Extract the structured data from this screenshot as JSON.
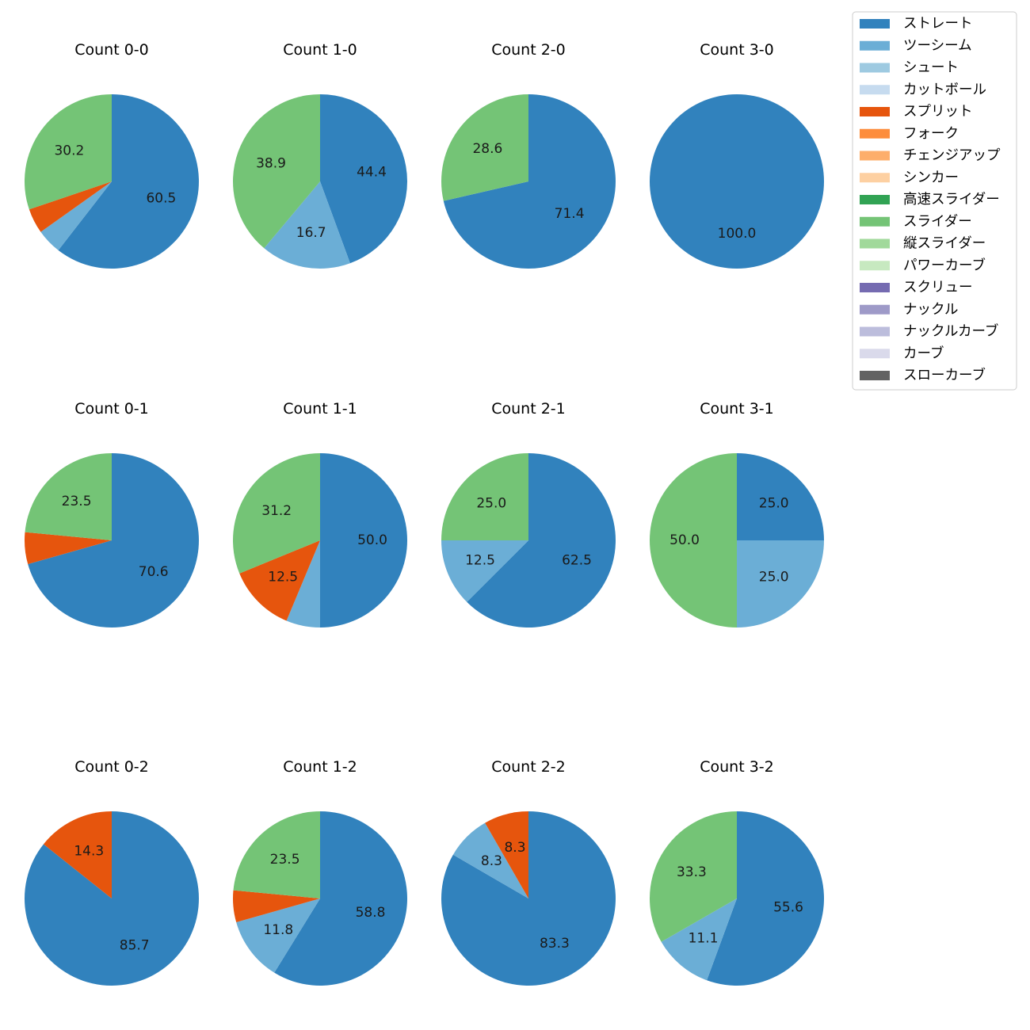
{
  "legend": {
    "entries": [
      {
        "name": "ストレート",
        "color": "#3182bd"
      },
      {
        "name": "ツーシーム",
        "color": "#6baed6"
      },
      {
        "name": "シュート",
        "color": "#9ecae1"
      },
      {
        "name": "カットボール",
        "color": "#c6dbef"
      },
      {
        "name": "スプリット",
        "color": "#e6550d"
      },
      {
        "name": "フォーク",
        "color": "#fd8d3c"
      },
      {
        "name": "チェンジアップ",
        "color": "#fdae6b"
      },
      {
        "name": "シンカー",
        "color": "#fdd0a2"
      },
      {
        "name": "高速スライダー",
        "color": "#31a354"
      },
      {
        "name": "スライダー",
        "color": "#74c476"
      },
      {
        "name": "縦スライダー",
        "color": "#a1d99b"
      },
      {
        "name": "パワーカーブ",
        "color": "#c7e9c0"
      },
      {
        "name": "スクリュー",
        "color": "#756bb1"
      },
      {
        "name": "ナックル",
        "color": "#9e9ac8"
      },
      {
        "name": "ナックルカーブ",
        "color": "#bcbddc"
      },
      {
        "name": "カーブ",
        "color": "#dadaeb"
      },
      {
        "name": "スローカーブ",
        "color": "#636363"
      }
    ]
  },
  "chart_data": [
    {
      "type": "pie",
      "title": "Count 0-0",
      "slices": [
        {
          "category": "ストレート",
          "value": 60.5
        },
        {
          "category": "ツーシーム",
          "value": 4.65
        },
        {
          "category": "スプリット",
          "value": 4.65
        },
        {
          "category": "スライダー",
          "value": 30.2
        }
      ],
      "labels": [
        "60.5",
        "",
        "",
        "30.2"
      ]
    },
    {
      "type": "pie",
      "title": "Count 1-0",
      "slices": [
        {
          "category": "ストレート",
          "value": 44.4
        },
        {
          "category": "ツーシーム",
          "value": 16.7
        },
        {
          "category": "スライダー",
          "value": 38.9
        }
      ],
      "labels": [
        "44.4",
        "16.7",
        "38.9"
      ]
    },
    {
      "type": "pie",
      "title": "Count 2-0",
      "slices": [
        {
          "category": "ストレート",
          "value": 71.4
        },
        {
          "category": "スライダー",
          "value": 28.6
        }
      ],
      "labels": [
        "71.4",
        "28.6"
      ]
    },
    {
      "type": "pie",
      "title": "Count 3-0",
      "slices": [
        {
          "category": "ストレート",
          "value": 100.0
        }
      ],
      "labels": [
        "100.0"
      ]
    },
    {
      "type": "pie",
      "title": "Count 0-1",
      "slices": [
        {
          "category": "ストレート",
          "value": 70.6
        },
        {
          "category": "スプリット",
          "value": 5.9
        },
        {
          "category": "スライダー",
          "value": 23.5
        }
      ],
      "labels": [
        "70.6",
        "",
        "23.5"
      ]
    },
    {
      "type": "pie",
      "title": "Count 1-1",
      "slices": [
        {
          "category": "ストレート",
          "value": 50.0
        },
        {
          "category": "ツーシーム",
          "value": 6.3
        },
        {
          "category": "スプリット",
          "value": 12.5
        },
        {
          "category": "スライダー",
          "value": 31.2
        }
      ],
      "labels": [
        "50.0",
        "",
        "12.5",
        "31.2"
      ]
    },
    {
      "type": "pie",
      "title": "Count 2-1",
      "slices": [
        {
          "category": "ストレート",
          "value": 62.5
        },
        {
          "category": "ツーシーム",
          "value": 12.5
        },
        {
          "category": "スライダー",
          "value": 25.0
        }
      ],
      "labels": [
        "62.5",
        "12.5",
        "25.0"
      ]
    },
    {
      "type": "pie",
      "title": "Count 3-1",
      "slices": [
        {
          "category": "ストレート",
          "value": 25.0
        },
        {
          "category": "ツーシーム",
          "value": 25.0
        },
        {
          "category": "スライダー",
          "value": 50.0
        }
      ],
      "labels": [
        "25.0",
        "25.0",
        "50.0"
      ]
    },
    {
      "type": "pie",
      "title": "Count 0-2",
      "slices": [
        {
          "category": "ストレート",
          "value": 85.7
        },
        {
          "category": "スプリット",
          "value": 14.3
        }
      ],
      "labels": [
        "85.7",
        "14.3"
      ]
    },
    {
      "type": "pie",
      "title": "Count 1-2",
      "slices": [
        {
          "category": "ストレート",
          "value": 58.8
        },
        {
          "category": "ツーシーム",
          "value": 11.8
        },
        {
          "category": "スプリット",
          "value": 5.9
        },
        {
          "category": "スライダー",
          "value": 23.5
        }
      ],
      "labels": [
        "58.8",
        "11.8",
        "",
        "23.5"
      ]
    },
    {
      "type": "pie",
      "title": "Count 2-2",
      "slices": [
        {
          "category": "ストレート",
          "value": 83.3
        },
        {
          "category": "ツーシーム",
          "value": 8.3
        },
        {
          "category": "スプリット",
          "value": 8.3
        }
      ],
      "labels": [
        "83.3",
        "8.3",
        "8.3"
      ]
    },
    {
      "type": "pie",
      "title": "Count 3-2",
      "slices": [
        {
          "category": "ストレート",
          "value": 55.6
        },
        {
          "category": "ツーシーム",
          "value": 11.1
        },
        {
          "category": "スライダー",
          "value": 33.3
        }
      ],
      "labels": [
        "55.6",
        "11.1",
        "33.3"
      ]
    }
  ]
}
